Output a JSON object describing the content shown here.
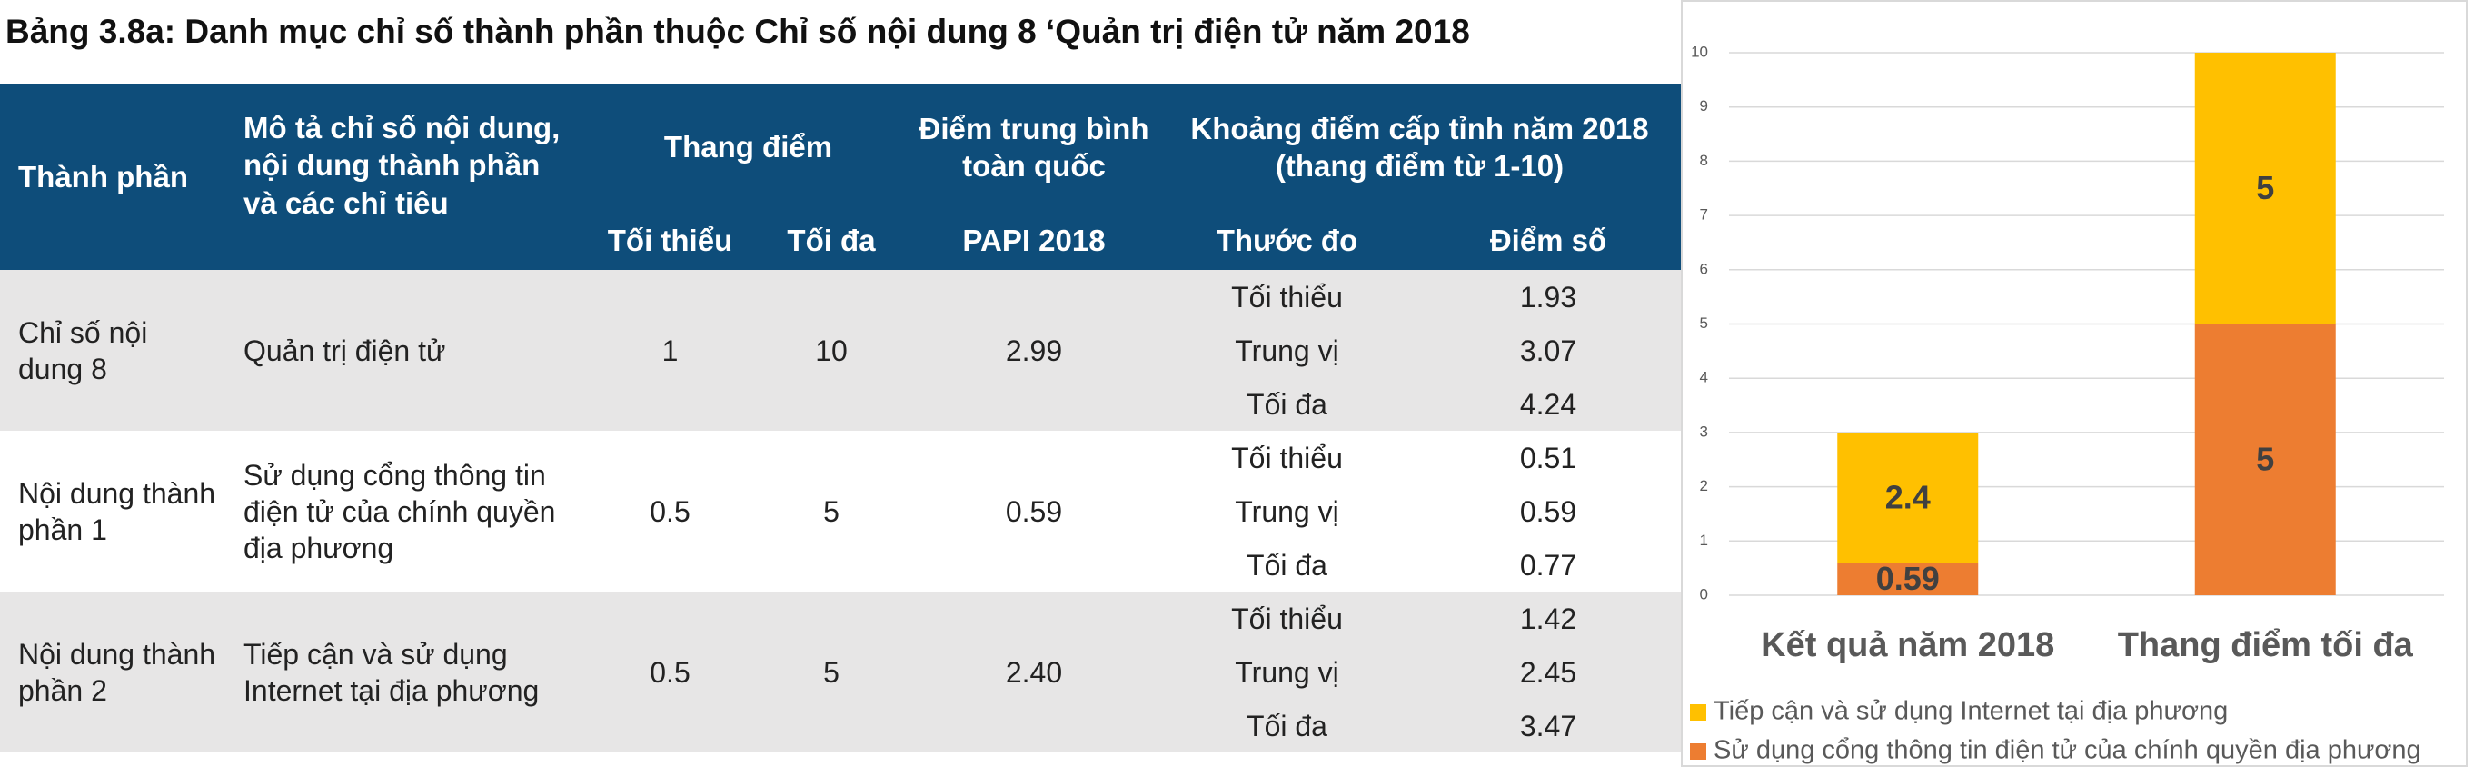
{
  "title": "Bảng 3.8a: Danh mục chỉ số thành phần thuộc Chỉ số nội dung 8 ‘Quản trị điện tử năm 2018",
  "table": {
    "header": {
      "component": "Thành phần",
      "description": "Mô tả chỉ số nội dung, nội dung thành phần và các chỉ tiêu",
      "scale": "Thang điểm",
      "scale_min": "Tối thiểu",
      "scale_max": "Tối đa",
      "average": "Điểm trung bình toàn quốc",
      "average_sub": "PAPI 2018",
      "range": "Khoảng điểm cấp tỉnh năm 2018 (thang điểm từ 1-10)",
      "measure": "Thước đo",
      "score": "Điểm số"
    },
    "rows": [
      {
        "component": "Chỉ số nội dung 8",
        "description": "Quản trị điện tử",
        "min": "1",
        "max": "10",
        "average": "2.99",
        "measures": [
          {
            "label": "Tối thiểu",
            "score": "1.93"
          },
          {
            "label": "Trung vị",
            "score": "3.07"
          },
          {
            "label": "Tối đa",
            "score": "4.24"
          }
        ]
      },
      {
        "component": "Nội dung thành phần 1",
        "description": "Sử dụng cổng thông tin điện tử của chính quyền địa phương",
        "min": "0.5",
        "max": "5",
        "average": "0.59",
        "measures": [
          {
            "label": "Tối thiểu",
            "score": "0.51"
          },
          {
            "label": "Trung vị",
            "score": "0.59"
          },
          {
            "label": "Tối đa",
            "score": "0.77"
          }
        ]
      },
      {
        "component": "Nội dung thành phần 2",
        "description": "Tiếp cận và sử dụng Internet tại địa phương",
        "min": "0.5",
        "max": "5",
        "average": "2.40",
        "measures": [
          {
            "label": "Tối thiểu",
            "score": "1.42"
          },
          {
            "label": "Trung vị",
            "score": "2.45"
          },
          {
            "label": "Tối đa",
            "score": "3.47"
          }
        ]
      }
    ]
  },
  "chart_data": {
    "type": "stacked_bar",
    "categories": [
      "Kết quả năm 2018",
      "Thang điểm tối đa"
    ],
    "series": [
      {
        "name": "Tiếp cận và sử dụng Internet tại địa phương",
        "color": "#ffc000",
        "values": [
          2.4,
          5
        ]
      },
      {
        "name": "Sử dụng cổng thông tin điện tử của chính quyền địa phương",
        "color": "#ed7d31",
        "values": [
          0.59,
          5
        ]
      }
    ],
    "ylim": [
      0,
      10
    ],
    "yticks": [
      0,
      1,
      2,
      3,
      4,
      5,
      6,
      7,
      8,
      9,
      10
    ],
    "grid": true,
    "legend": "bottom"
  }
}
